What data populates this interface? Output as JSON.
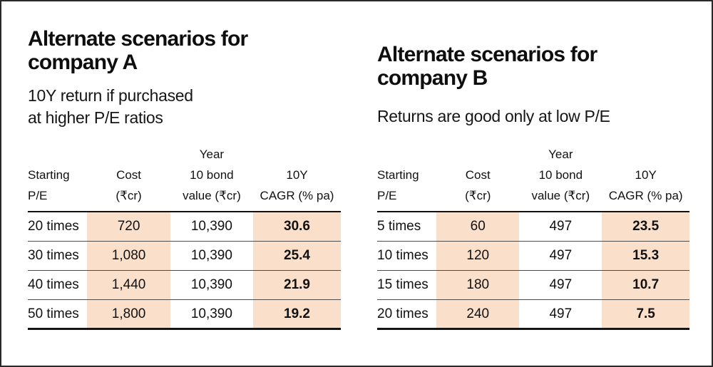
{
  "accent_color": "#fadfca",
  "panels": [
    {
      "title_lines": [
        "Alternate scenarios for",
        "company A"
      ],
      "subtitle_lines": [
        "10Y return if purchased",
        "at higher P/E ratios"
      ],
      "table": {
        "header": {
          "year_label": "Year",
          "columns": [
            {
              "line2": "Starting",
              "line3": "P/E"
            },
            {
              "line2": "Cost",
              "line3": "(₹cr)"
            },
            {
              "line2": "10 bond",
              "line3": "value (₹cr)"
            },
            {
              "line2": "10Y",
              "line3": "CAGR (% pa)"
            }
          ]
        },
        "rows": [
          {
            "pe": "20 times",
            "cost": "720",
            "bond_value": "10,390",
            "cagr": "30.6"
          },
          {
            "pe": "30 times",
            "cost": "1,080",
            "bond_value": "10,390",
            "cagr": "25.4"
          },
          {
            "pe": "40 times",
            "cost": "1,440",
            "bond_value": "10,390",
            "cagr": "21.9"
          },
          {
            "pe": "50 times",
            "cost": "1,800",
            "bond_value": "10,390",
            "cagr": "19.2"
          }
        ]
      }
    },
    {
      "title_lines": [
        "Alternate scenarios for",
        "company B"
      ],
      "subtitle_lines": [
        "Returns are good only at low P/E"
      ],
      "table": {
        "header": {
          "year_label": "Year",
          "columns": [
            {
              "line2": "Starting",
              "line3": "P/E"
            },
            {
              "line2": "Cost",
              "line3": "(₹cr)"
            },
            {
              "line2": "10 bond",
              "line3": "value (₹cr)"
            },
            {
              "line2": "10Y",
              "line3": "CAGR (% pa)"
            }
          ]
        },
        "rows": [
          {
            "pe": "5 times",
            "cost": "60",
            "bond_value": "497",
            "cagr": "23.5"
          },
          {
            "pe": "10 times",
            "cost": "120",
            "bond_value": "497",
            "cagr": "15.3"
          },
          {
            "pe": "15 times",
            "cost": "180",
            "bond_value": "497",
            "cagr": "10.7"
          },
          {
            "pe": "20 times",
            "cost": "240",
            "bond_value": "497",
            "cagr": "7.5"
          }
        ]
      }
    }
  ],
  "chart_data": [
    {
      "type": "table",
      "title": "Alternate scenarios for company A",
      "subtitle": "10Y return if purchased at higher P/E ratios",
      "columns": [
        "Starting P/E",
        "Cost (₹cr)",
        "Year 10 bond value (₹cr)",
        "10Y CAGR (% pa)"
      ],
      "rows": [
        [
          "20 times",
          720,
          10390,
          30.6
        ],
        [
          "30 times",
          1080,
          10390,
          25.4
        ],
        [
          "40 times",
          1440,
          10390,
          21.9
        ],
        [
          "50 times",
          1800,
          10390,
          19.2
        ]
      ],
      "highlighted_columns": [
        "Cost (₹cr)",
        "10Y CAGR (% pa)"
      ],
      "highlight_color": "#fadfca"
    },
    {
      "type": "table",
      "title": "Alternate scenarios for company B",
      "subtitle": "Returns are good only at low P/E",
      "columns": [
        "Starting P/E",
        "Cost (₹cr)",
        "Year 10 bond value (₹cr)",
        "10Y CAGR (% pa)"
      ],
      "rows": [
        [
          "5 times",
          60,
          497,
          23.5
        ],
        [
          "10 times",
          120,
          497,
          15.3
        ],
        [
          "15 times",
          180,
          497,
          10.7
        ],
        [
          "20 times",
          240,
          497,
          7.5
        ]
      ],
      "highlighted_columns": [
        "Cost (₹cr)",
        "10Y CAGR (% pa)"
      ],
      "highlight_color": "#fadfca"
    }
  ]
}
